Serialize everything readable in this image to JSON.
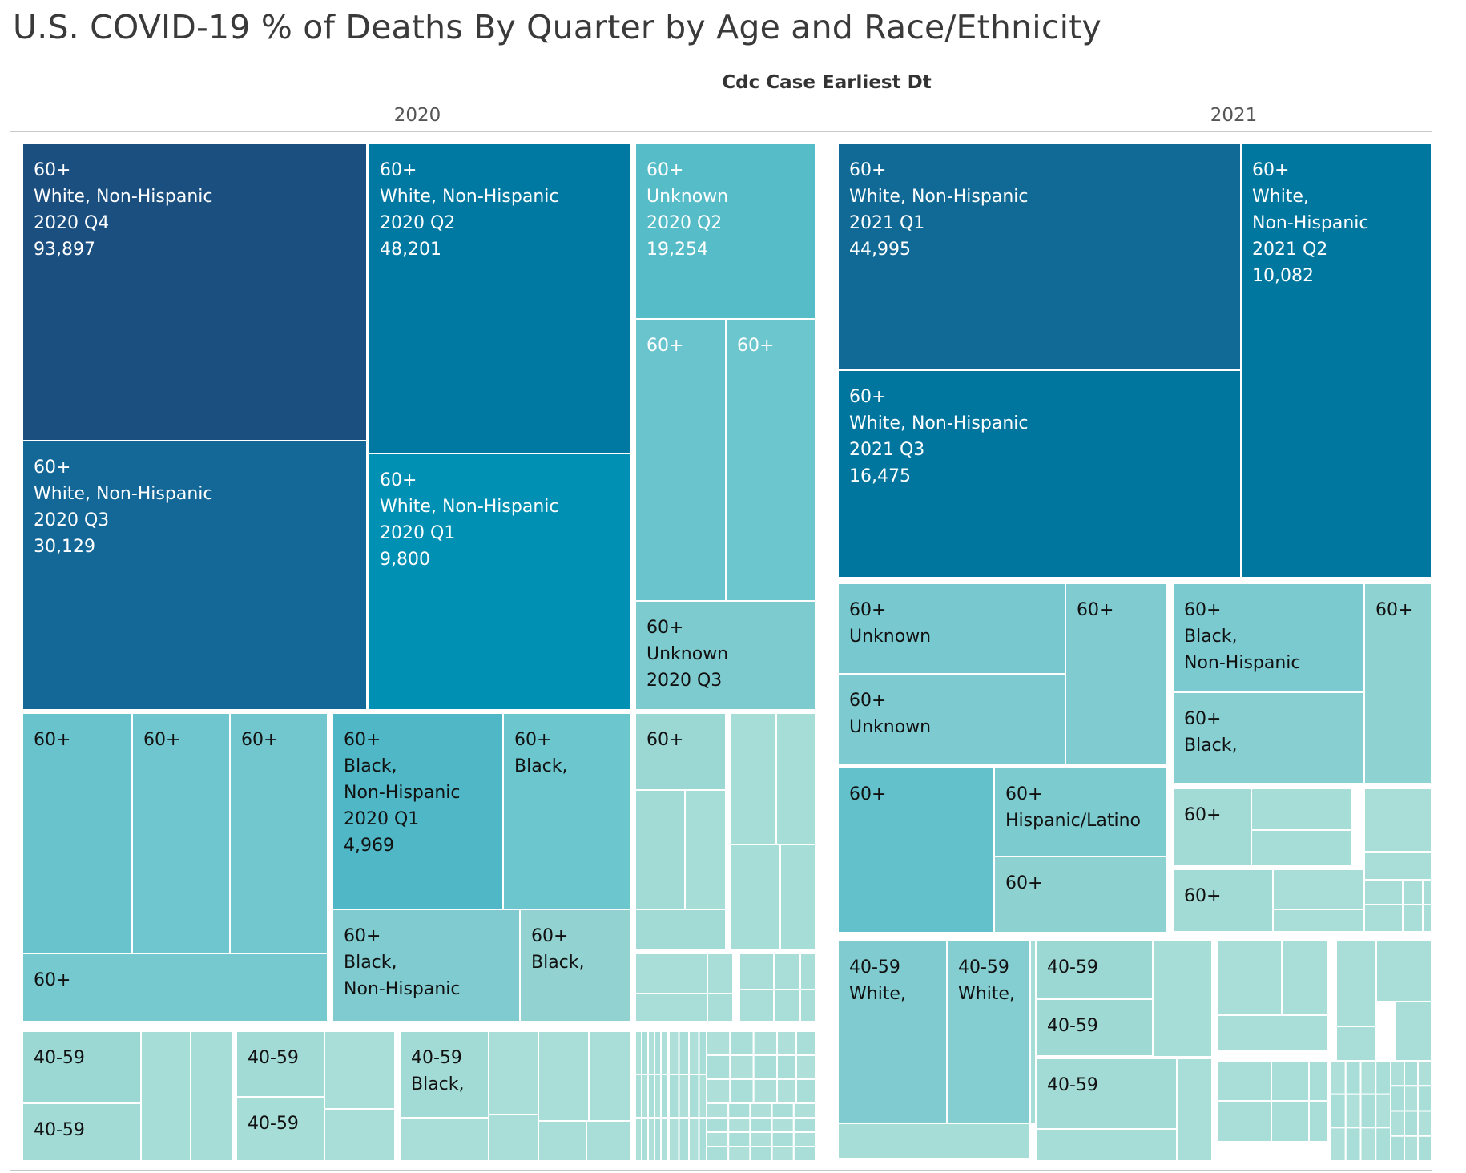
{
  "title": "U.S. COVID-19 % of Deaths By Quarter by Age and Race/Ethnicity",
  "header_field": "Cdc Case Earliest Dt",
  "chart_data": {
    "type": "treemap",
    "title": "U.S. COVID-19 % of Deaths By Quarter by Age and Race/Ethnicity",
    "column_field": "Cdc Case Earliest Dt",
    "panels": [
      {
        "year": "2020",
        "labeled_cells": [
          {
            "age": "60+",
            "race": "White, Non-Hispanic",
            "quarter": "2020 Q4",
            "deaths": 93897
          },
          {
            "age": "60+",
            "race": "White, Non-Hispanic",
            "quarter": "2020 Q2",
            "deaths": 48201
          },
          {
            "age": "60+",
            "race": "White, Non-Hispanic",
            "quarter": "2020 Q3",
            "deaths": 30129
          },
          {
            "age": "60+",
            "race": "Unknown",
            "quarter": "2020 Q2",
            "deaths": 19254
          },
          {
            "age": "60+",
            "race": "White, Non-Hispanic",
            "quarter": "2020 Q1",
            "deaths": 9800
          },
          {
            "age": "60+",
            "race": "Black, Non-Hispanic",
            "quarter": "2020 Q1",
            "deaths": 4969
          },
          {
            "age": "60+",
            "race": "Unknown",
            "quarter": "2020 Q3"
          },
          {
            "age": "60+",
            "race": "Black, Non-Hispanic"
          },
          {
            "age": "60+",
            "race": "Black,"
          },
          {
            "age": "60+",
            "race": "Black,"
          },
          {
            "age": "40-59",
            "race": "Black,"
          }
        ]
      },
      {
        "year": "2021",
        "labeled_cells": [
          {
            "age": "60+",
            "race": "White, Non-Hispanic",
            "quarter": "2021 Q1",
            "deaths": 44995
          },
          {
            "age": "60+",
            "race": "White, Non-Hispanic",
            "quarter": "2021 Q3",
            "deaths": 16475
          },
          {
            "age": "60+",
            "race": "White, Non-Hispanic",
            "quarter": "2021 Q2",
            "deaths": 10082
          },
          {
            "age": "60+",
            "race": "Unknown"
          },
          {
            "age": "60+",
            "race": "Unknown"
          },
          {
            "age": "60+",
            "race": "Black, Non-Hispanic"
          },
          {
            "age": "60+",
            "race": "Black,"
          },
          {
            "age": "60+",
            "race": "Hispanic/Latino"
          },
          {
            "age": "40-59",
            "race": "White,"
          },
          {
            "age": "40-59",
            "race": "White,"
          }
        ]
      }
    ]
  },
  "tiles": [
    {
      "lines": [
        "60+",
        "White, Non-Hispanic",
        "2020 Q4",
        "93,897"
      ],
      "fill": "#1b4f80",
      "text": "#ffffff"
    },
    {
      "lines": [
        "60+",
        "White, Non-Hispanic",
        "2020 Q3",
        "30,129"
      ],
      "fill": "#136898",
      "text": "#ffffff"
    },
    {
      "lines": [
        "60+",
        "White, Non-Hispanic",
        "2020 Q2",
        "48,201"
      ],
      "fill": "#0079a2",
      "text": "#ffffff"
    },
    {
      "lines": [
        "60+",
        "White, Non-Hispanic",
        "2020 Q1",
        "9,800"
      ],
      "fill": "#0090b3",
      "text": "#ffffff"
    },
    {
      "lines": [
        "60+",
        "Unknown",
        "2020 Q2",
        "19,254"
      ],
      "fill": "#56bcc8",
      "text": "#ffffff"
    },
    {
      "lines": [
        "60+"
      ],
      "fill": "#6ac4cd",
      "text": "#ffffff"
    },
    {
      "lines": [
        "60+"
      ],
      "fill": "#6cc6cd",
      "text": "#ffffff"
    },
    {
      "lines": [
        "60+",
        "Unknown",
        "2020 Q3"
      ],
      "fill": "#7dcbcf",
      "text": "#111111"
    },
    {
      "lines": [
        "60+"
      ],
      "fill": "#68c3cd",
      "text": "#111111"
    },
    {
      "lines": [
        "60+"
      ],
      "fill": "#70c6ce",
      "text": "#111111"
    },
    {
      "lines": [
        "60+"
      ],
      "fill": "#72c7cf",
      "text": "#111111"
    },
    {
      "lines": [
        "60+"
      ],
      "fill": "#76c9cf",
      "text": "#111111"
    },
    {
      "lines": [
        "60+",
        "Black,",
        "Non-Hispanic",
        "2020 Q1",
        "4,969"
      ],
      "fill": "#4fb7c6",
      "text": "#111111"
    },
    {
      "lines": [
        "60+",
        "Black,"
      ],
      "fill": "#6cc6cd",
      "text": "#111111"
    },
    {
      "lines": [
        "60+",
        "Black,",
        "Non-Hispanic"
      ],
      "fill": "#7fcbd0",
      "text": "#111111"
    },
    {
      "lines": [
        "60+",
        "Black,"
      ],
      "fill": "#92d3d2",
      "text": "#111111"
    },
    {
      "lines": [
        "60+"
      ],
      "fill": "#9bd8d4",
      "text": "#111111"
    },
    {
      "lines": [
        "40-59"
      ],
      "fill": "#9bd8d4",
      "text": "#111111"
    },
    {
      "lines": [
        "40-59"
      ],
      "fill": "#a2dbd5",
      "text": "#111111"
    },
    {
      "lines": [
        "40-59"
      ],
      "fill": "#a2dbd5",
      "text": "#111111"
    },
    {
      "lines": [
        "40-59"
      ],
      "fill": "#a6ddd6",
      "text": "#111111"
    },
    {
      "lines": [
        "40-59",
        "Black,"
      ],
      "fill": "#a2dbd5",
      "text": "#111111"
    },
    {
      "lines": [
        "60+",
        "White, Non-Hispanic",
        "2021 Q1",
        "44,995"
      ],
      "fill": "#116a96",
      "text": "#ffffff"
    },
    {
      "lines": [
        "60+",
        "White, Non-Hispanic",
        "2021 Q3",
        "16,475"
      ],
      "fill": "#00769f",
      "text": "#ffffff"
    },
    {
      "lines": [
        "60+",
        "White,",
        "Non-Hispanic",
        "2021 Q2",
        "10,082"
      ],
      "fill": "#00779f",
      "text": "#ffffff"
    },
    {
      "lines": [
        "60+",
        "Unknown"
      ],
      "fill": "#78c9cf",
      "text": "#111111"
    },
    {
      "lines": [
        "60+",
        "Unknown"
      ],
      "fill": "#7dcbd0",
      "text": "#111111"
    },
    {
      "lines": [
        "60+"
      ],
      "fill": "#7fcbd0",
      "text": "#111111"
    },
    {
      "lines": [
        "60+",
        "Black,",
        "Non-Hispanic"
      ],
      "fill": "#7bcad0",
      "text": "#111111"
    },
    {
      "lines": [
        "60+",
        "Black,"
      ],
      "fill": "#88cfd1",
      "text": "#111111"
    },
    {
      "lines": [
        "60+"
      ],
      "fill": "#8fd2d2",
      "text": "#111111"
    },
    {
      "lines": [
        "60+"
      ],
      "fill": "#63c1cb",
      "text": "#111111"
    },
    {
      "lines": [
        "60+",
        "Hispanic/Latino"
      ],
      "fill": "#7ccbcf",
      "text": "#111111"
    },
    {
      "lines": [
        "60+"
      ],
      "fill": "#8dd2d1",
      "text": "#111111"
    },
    {
      "lines": [
        "60+"
      ],
      "fill": "#a2dbd5",
      "text": "#111111"
    },
    {
      "lines": [
        "60+"
      ],
      "fill": "#a2dbd5",
      "text": "#111111"
    },
    {
      "lines": [
        "40-59",
        "White,"
      ],
      "fill": "#7fcbd0",
      "text": "#111111"
    },
    {
      "lines": [
        "40-59",
        "White,"
      ],
      "fill": "#84cdd0",
      "text": "#111111"
    },
    {
      "lines": [
        "40-59"
      ],
      "fill": "#9bd8d4",
      "text": "#111111"
    },
    {
      "lines": [
        "40-59"
      ],
      "fill": "#9fd9d4",
      "text": "#111111"
    },
    {
      "lines": [
        "40-59"
      ],
      "fill": "#a2dbd5",
      "text": "#111111"
    }
  ]
}
